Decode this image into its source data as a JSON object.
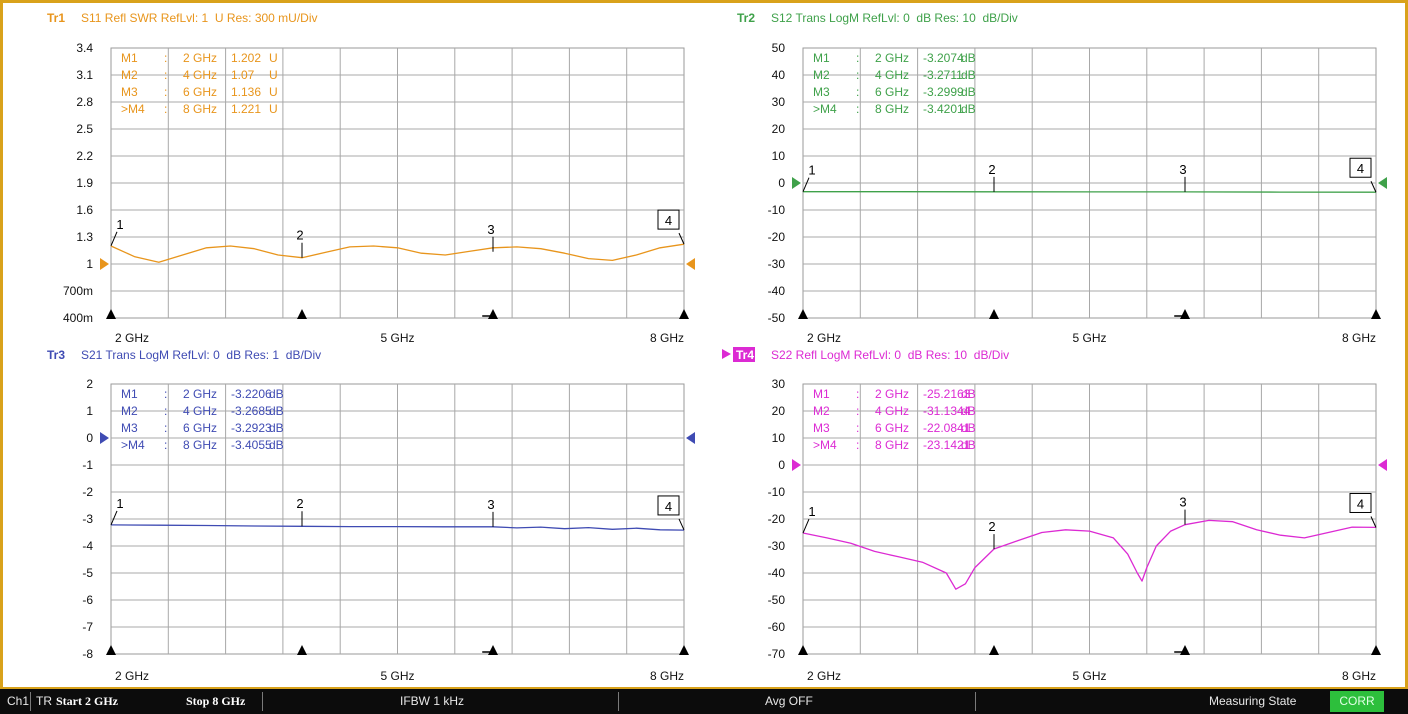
{
  "status_bar": {
    "channel": "Ch1",
    "mode": "TR",
    "start": "Start 2 GHz",
    "stop": "Stop 8 GHz",
    "ifbw": "IFBW 1 kHz",
    "avg": "Avg OFF",
    "state": "Measuring State",
    "corr": "CORR"
  },
  "chart_data": [
    {
      "type": "line",
      "trace_label": "Tr1",
      "header": "S11 Refl SWR RefLvl: 1  U Res: 300 mU/Div",
      "color": "#e8951c",
      "x_unit": "GHz",
      "xlim": [
        2,
        8
      ],
      "x_tick_labels": [
        "2 GHz",
        "5 GHz",
        "8 GHz"
      ],
      "ylim": [
        0.4,
        3.4
      ],
      "y_tick_labels": [
        "3.4",
        "3.1",
        "2.8",
        "2.5",
        "2.2",
        "1.9",
        "1.6",
        "1.3",
        "1",
        "700m",
        "400m"
      ],
      "ref_value": 1,
      "grid": true,
      "marker_table": [
        [
          "M1",
          ":",
          "2 GHz",
          "1.202",
          "U"
        ],
        [
          "M2",
          ":",
          "4 GHz",
          "1.07",
          "U"
        ],
        [
          "M3",
          ":",
          "6 GHz",
          "1.136",
          "U"
        ],
        [
          ">M4",
          ":",
          "8 GHz",
          "1.221",
          "U"
        ]
      ],
      "markers": [
        {
          "label": "1",
          "x": 2,
          "y": 1.202
        },
        {
          "label": "2",
          "x": 4,
          "y": 1.07
        },
        {
          "label": "3",
          "x": 6,
          "y": 1.136
        },
        {
          "label": "4",
          "x": 8,
          "y": 1.221,
          "active": true
        }
      ],
      "series": [
        {
          "x": [
            2,
            2.25,
            2.5,
            2.75,
            3,
            3.25,
            3.5,
            3.75,
            4,
            4.25,
            4.5,
            4.75,
            5,
            5.25,
            5.5,
            5.75,
            6,
            6.25,
            6.5,
            6.75,
            7,
            7.25,
            7.5,
            7.75,
            8
          ],
          "values": [
            1.2,
            1.08,
            1.02,
            1.1,
            1.18,
            1.2,
            1.17,
            1.1,
            1.07,
            1.13,
            1.19,
            1.2,
            1.18,
            1.12,
            1.1,
            1.14,
            1.18,
            1.19,
            1.17,
            1.12,
            1.06,
            1.04,
            1.1,
            1.18,
            1.22
          ]
        }
      ]
    },
    {
      "type": "line",
      "trace_label": "Tr2",
      "header": "S12 Trans LogM RefLvl: 0  dB Res: 10  dB/Div",
      "color": "#3fa14a",
      "x_unit": "GHz",
      "xlim": [
        2,
        8
      ],
      "x_tick_labels": [
        "2 GHz",
        "5 GHz",
        "8 GHz"
      ],
      "ylim": [
        -50,
        50
      ],
      "y_tick_labels": [
        "50",
        "40",
        "30",
        "20",
        "10",
        "0",
        "-10",
        "-20",
        "-30",
        "-40",
        "-50"
      ],
      "ref_value": 0,
      "grid": true,
      "marker_table": [
        [
          "M1",
          ":",
          "2 GHz",
          "-3.2074",
          "dB"
        ],
        [
          "M2",
          ":",
          "4 GHz",
          "-3.2711",
          "dB"
        ],
        [
          "M3",
          ":",
          "6 GHz",
          "-3.2999",
          "dB"
        ],
        [
          ">M4",
          ":",
          "8 GHz",
          "-3.4201",
          "dB"
        ]
      ],
      "markers": [
        {
          "label": "1",
          "x": 2,
          "y": -3.2074
        },
        {
          "label": "2",
          "x": 4,
          "y": -3.2711
        },
        {
          "label": "3",
          "x": 6,
          "y": -3.2999
        },
        {
          "label": "4",
          "x": 8,
          "y": -3.4201,
          "active": true
        }
      ],
      "series": [
        {
          "x": [
            2,
            3,
            4,
            5,
            6,
            7,
            8
          ],
          "values": [
            -3.21,
            -3.24,
            -3.27,
            -3.28,
            -3.3,
            -3.36,
            -3.42
          ]
        }
      ]
    },
    {
      "type": "line",
      "trace_label": "Tr3",
      "header": "S21 Trans LogM RefLvl: 0  dB Res: 1  dB/Div",
      "color": "#3f4bb3",
      "x_unit": "GHz",
      "xlim": [
        2,
        8
      ],
      "x_tick_labels": [
        "2 GHz",
        "5 GHz",
        "8 GHz"
      ],
      "ylim": [
        -8,
        2
      ],
      "y_tick_labels": [
        "2",
        "1",
        "0",
        "-1",
        "-2",
        "-3",
        "-4",
        "-5",
        "-6",
        "-7",
        "-8"
      ],
      "ref_value": 0,
      "grid": true,
      "marker_table": [
        [
          "M1",
          ":",
          "2 GHz",
          "-3.2206",
          "dB"
        ],
        [
          "M2",
          ":",
          "4 GHz",
          "-3.2685",
          "dB"
        ],
        [
          "M3",
          ":",
          "6 GHz",
          "-3.2923",
          "dB"
        ],
        [
          ">M4",
          ":",
          "8 GHz",
          "-3.4055",
          "dB"
        ]
      ],
      "markers": [
        {
          "label": "1",
          "x": 2,
          "y": -3.2206
        },
        {
          "label": "2",
          "x": 4,
          "y": -3.2685
        },
        {
          "label": "3",
          "x": 6,
          "y": -3.2923
        },
        {
          "label": "4",
          "x": 8,
          "y": -3.4055,
          "active": true
        }
      ],
      "series": [
        {
          "x": [
            2,
            2.5,
            3,
            3.5,
            4,
            4.5,
            5,
            5.5,
            6,
            6.25,
            6.5,
            6.75,
            7,
            7.25,
            7.5,
            7.75,
            8
          ],
          "values": [
            -3.22,
            -3.23,
            -3.24,
            -3.26,
            -3.27,
            -3.28,
            -3.28,
            -3.29,
            -3.29,
            -3.33,
            -3.3,
            -3.36,
            -3.32,
            -3.38,
            -3.34,
            -3.4,
            -3.41
          ]
        }
      ]
    },
    {
      "type": "line",
      "trace_label": "Tr4",
      "header": "S22 Refl LogM RefLvl: 0  dB Res: 10  dB/Div",
      "color": "#dc2ad3",
      "active_trace": true,
      "x_unit": "GHz",
      "xlim": [
        2,
        8
      ],
      "x_tick_labels": [
        "2 GHz",
        "5 GHz",
        "8 GHz"
      ],
      "ylim": [
        -70,
        30
      ],
      "y_tick_labels": [
        "30",
        "20",
        "10",
        "0",
        "-10",
        "-20",
        "-30",
        "-40",
        "-50",
        "-60",
        "-70"
      ],
      "ref_value": 0,
      "grid": true,
      "marker_table": [
        [
          "M1",
          ":",
          "2 GHz",
          "-25.2163",
          "dB"
        ],
        [
          "M2",
          ":",
          "4 GHz",
          "-31.1344",
          "dB"
        ],
        [
          "M3",
          ":",
          "6 GHz",
          "-22.0841",
          "dB"
        ],
        [
          ">M4",
          ":",
          "8 GHz",
          "-23.1421",
          "dB"
        ]
      ],
      "markers": [
        {
          "label": "1",
          "x": 2,
          "y": -25.2163
        },
        {
          "label": "2",
          "x": 4,
          "y": -31.1344
        },
        {
          "label": "3",
          "x": 6,
          "y": -22.0841
        },
        {
          "label": "4",
          "x": 8,
          "y": -23.1421,
          "active": true
        }
      ],
      "series": [
        {
          "x": [
            2,
            2.25,
            2.5,
            2.75,
            3,
            3.25,
            3.5,
            3.6,
            3.7,
            3.8,
            4,
            4.25,
            4.5,
            4.75,
            5,
            5.25,
            5.4,
            5.5,
            5.55,
            5.6,
            5.7,
            5.85,
            6,
            6.25,
            6.5,
            6.75,
            7,
            7.25,
            7.5,
            7.75,
            8
          ],
          "values": [
            -25.2,
            -27,
            -29,
            -32,
            -34,
            -36,
            -40,
            -46,
            -44,
            -38,
            -31.1,
            -28,
            -25,
            -24,
            -24.5,
            -27,
            -33,
            -40,
            -43,
            -38,
            -30,
            -24.5,
            -22.1,
            -20.5,
            -21,
            -24,
            -26,
            -27,
            -25,
            -23,
            -23.1
          ]
        }
      ]
    }
  ]
}
